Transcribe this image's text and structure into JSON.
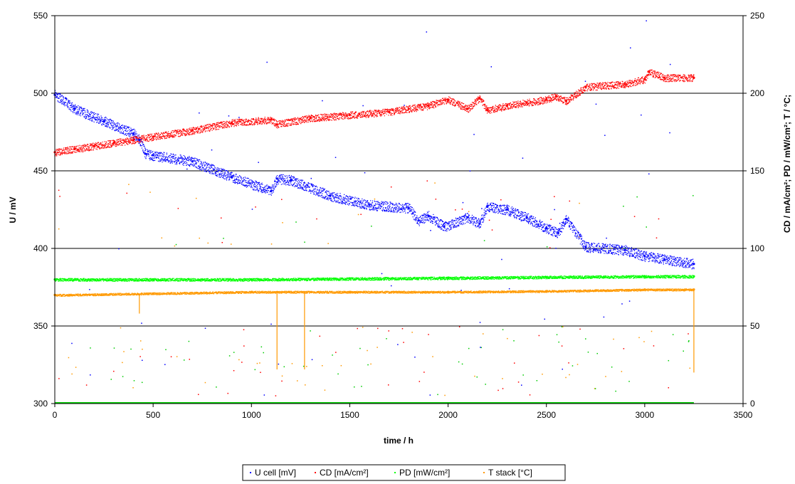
{
  "chart_data": {
    "type": "scatter",
    "xlabel": "time / h",
    "ylabel": "U / mV",
    "y2label": "CD / mA/cm²; PD / mW/cm²; T / °C;",
    "xlim": [
      0,
      3500
    ],
    "ylim": [
      300,
      550
    ],
    "y2lim": [
      0,
      250
    ],
    "xticks": [
      0,
      500,
      1000,
      1500,
      2000,
      2500,
      3000,
      3500
    ],
    "yticks": [
      300,
      350,
      400,
      450,
      500,
      550
    ],
    "y2ticks": [
      0,
      50,
      100,
      150,
      200,
      250
    ],
    "grid": "horizontal major gridlines",
    "legend_position": "bottom-center",
    "series": [
      {
        "name": "U cell [mV]",
        "axis": "left",
        "color": "#0000ff",
        "marker": "dot",
        "x": [
          0,
          100,
          250,
          400,
          430,
          460,
          500,
          700,
          900,
          1100,
          1130,
          1200,
          1400,
          1600,
          1800,
          1850,
          1900,
          1980,
          2100,
          2160,
          2200,
          2300,
          2400,
          2500,
          2560,
          2600,
          2700,
          2900,
          3000,
          3100,
          3250
        ],
        "y": [
          499,
          490,
          482,
          474,
          470,
          461,
          460,
          456,
          446,
          437,
          445,
          444,
          434,
          428,
          426,
          418,
          421,
          414,
          420,
          416,
          427,
          425,
          420,
          413,
          410,
          419,
          401,
          399,
          395,
          393,
          390
        ]
      },
      {
        "name": "CD [mA/cm²]",
        "axis": "right",
        "color": "#ff0000",
        "marker": "dot",
        "x": [
          0,
          100,
          200,
          300,
          400,
          500,
          700,
          900,
          1100,
          1130,
          1300,
          1500,
          1700,
          1800,
          1900,
          2000,
          2100,
          2160,
          2200,
          2300,
          2400,
          2500,
          2550,
          2600,
          2700,
          2900,
          3000,
          3020,
          3100,
          3250
        ],
        "y": [
          162,
          164,
          166,
          168,
          170,
          172,
          176,
          181,
          183,
          180,
          184,
          186,
          188,
          190,
          192,
          196,
          190,
          197,
          189,
          192,
          194,
          196,
          198,
          195,
          204,
          206,
          209,
          214,
          210,
          210
        ]
      },
      {
        "name": "PD [mW/cm²]",
        "axis": "right",
        "color": "#00ff00",
        "marker": "dot",
        "x": [
          0,
          500,
          1000,
          1500,
          2000,
          2500,
          3000,
          3250
        ],
        "y": [
          80,
          80,
          80,
          80.5,
          81,
          81.5,
          82,
          82
        ]
      },
      {
        "name": "T stack [°C]",
        "axis": "right",
        "color": "#ff9900",
        "marker": "dot",
        "x": [
          0,
          500,
          1000,
          1500,
          2000,
          2500,
          3000,
          3250
        ],
        "y": [
          70,
          71,
          72,
          72,
          72,
          72.5,
          73.5,
          73.5
        ]
      }
    ]
  }
}
